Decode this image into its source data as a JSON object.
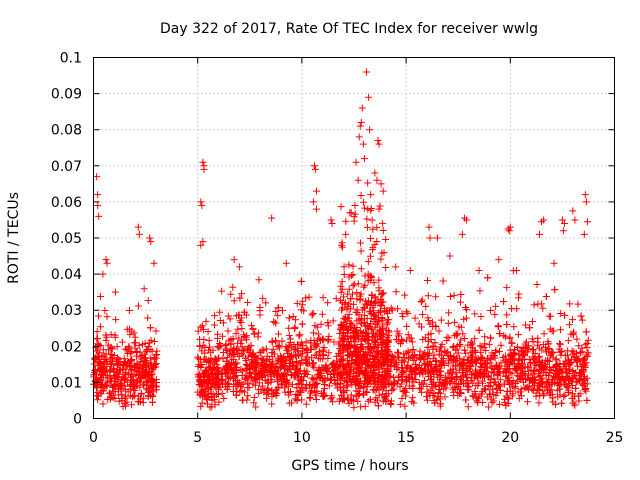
{
  "chart_data": {
    "type": "scatter",
    "title": "Day 322 of 2017, Rate Of TEC Index for receiver wwlg",
    "xlabel": "GPS time / hours",
    "ylabel": "ROTI / TECUs",
    "xlim": [
      0,
      25
    ],
    "ylim": [
      0,
      0.1
    ],
    "x_ticks": [
      "0",
      "5",
      "10",
      "15",
      "20",
      "25"
    ],
    "y_ticks": [
      "0",
      "0.01",
      "0.02",
      "0.03",
      "0.04",
      "0.05",
      "0.06",
      "0.07",
      "0.08",
      "0.09",
      "0.1"
    ],
    "grid": true,
    "marker": "+",
    "color": "#ff0000",
    "segments": [
      {
        "start": 0.0,
        "end": 3.05,
        "median": 0.012,
        "spread": 0.006,
        "count": 420
      },
      {
        "start": 5.0,
        "end": 6.0,
        "median": 0.011,
        "spread": 0.006,
        "count": 160
      },
      {
        "start": 6.0,
        "end": 23.75,
        "median": 0.013,
        "spread": 0.007,
        "count": 2400
      },
      {
        "start": 11.8,
        "end": 14.2,
        "median": 0.022,
        "spread": 0.012,
        "count": 420
      }
    ],
    "outliers": [
      {
        "x": 0.15,
        "y": 0.067
      },
      {
        "x": 0.2,
        "y": 0.062
      },
      {
        "x": 0.2,
        "y": 0.059
      },
      {
        "x": 0.25,
        "y": 0.056
      },
      {
        "x": 0.6,
        "y": 0.044
      },
      {
        "x": 0.65,
        "y": 0.043
      },
      {
        "x": 2.15,
        "y": 0.053
      },
      {
        "x": 2.2,
        "y": 0.051
      },
      {
        "x": 2.7,
        "y": 0.05
      },
      {
        "x": 2.75,
        "y": 0.049
      },
      {
        "x": 5.15,
        "y": 0.06
      },
      {
        "x": 5.2,
        "y": 0.059
      },
      {
        "x": 5.25,
        "y": 0.071
      },
      {
        "x": 5.3,
        "y": 0.07
      },
      {
        "x": 5.3,
        "y": 0.069
      },
      {
        "x": 5.25,
        "y": 0.049
      },
      {
        "x": 5.15,
        "y": 0.048
      },
      {
        "x": 8.55,
        "y": 0.0555
      },
      {
        "x": 10.6,
        "y": 0.07
      },
      {
        "x": 10.65,
        "y": 0.069
      },
      {
        "x": 10.7,
        "y": 0.063
      },
      {
        "x": 10.55,
        "y": 0.06
      },
      {
        "x": 10.7,
        "y": 0.058
      },
      {
        "x": 11.4,
        "y": 0.055
      },
      {
        "x": 11.45,
        "y": 0.054
      },
      {
        "x": 12.3,
        "y": 0.057
      },
      {
        "x": 12.6,
        "y": 0.071
      },
      {
        "x": 12.55,
        "y": 0.059
      },
      {
        "x": 12.75,
        "y": 0.078
      },
      {
        "x": 12.8,
        "y": 0.081
      },
      {
        "x": 12.85,
        "y": 0.082
      },
      {
        "x": 12.9,
        "y": 0.086
      },
      {
        "x": 12.95,
        "y": 0.076
      },
      {
        "x": 13.0,
        "y": 0.072
      },
      {
        "x": 13.1,
        "y": 0.096
      },
      {
        "x": 13.2,
        "y": 0.089
      },
      {
        "x": 13.25,
        "y": 0.08
      },
      {
        "x": 13.5,
        "y": 0.068
      },
      {
        "x": 13.6,
        "y": 0.066
      },
      {
        "x": 13.65,
        "y": 0.077
      },
      {
        "x": 13.7,
        "y": 0.076
      },
      {
        "x": 13.8,
        "y": 0.065
      },
      {
        "x": 13.9,
        "y": 0.063
      },
      {
        "x": 13.7,
        "y": 0.058
      },
      {
        "x": 13.3,
        "y": 0.062
      },
      {
        "x": 12.7,
        "y": 0.066
      },
      {
        "x": 16.1,
        "y": 0.053
      },
      {
        "x": 16.15,
        "y": 0.05
      },
      {
        "x": 16.5,
        "y": 0.05
      },
      {
        "x": 17.1,
        "y": 0.045
      },
      {
        "x": 17.8,
        "y": 0.0555
      },
      {
        "x": 17.9,
        "y": 0.055
      },
      {
        "x": 17.7,
        "y": 0.051
      },
      {
        "x": 19.9,
        "y": 0.0525
      },
      {
        "x": 19.95,
        "y": 0.052
      },
      {
        "x": 20.0,
        "y": 0.053
      },
      {
        "x": 21.5,
        "y": 0.0545
      },
      {
        "x": 21.6,
        "y": 0.055
      },
      {
        "x": 21.4,
        "y": 0.051
      },
      {
        "x": 22.5,
        "y": 0.055
      },
      {
        "x": 22.6,
        "y": 0.054
      },
      {
        "x": 22.55,
        "y": 0.052
      },
      {
        "x": 23.0,
        "y": 0.0575
      },
      {
        "x": 23.1,
        "y": 0.055
      },
      {
        "x": 23.6,
        "y": 0.062
      },
      {
        "x": 23.65,
        "y": 0.06
      },
      {
        "x": 23.7,
        "y": 0.0545
      },
      {
        "x": 23.55,
        "y": 0.051
      },
      {
        "x": 0.45,
        "y": 0.04
      },
      {
        "x": 1.05,
        "y": 0.035
      },
      {
        "x": 2.9,
        "y": 0.043
      },
      {
        "x": 6.75,
        "y": 0.044
      },
      {
        "x": 7.0,
        "y": 0.042
      },
      {
        "x": 9.25,
        "y": 0.043
      },
      {
        "x": 11.9,
        "y": 0.048
      },
      {
        "x": 12.1,
        "y": 0.051
      },
      {
        "x": 14.5,
        "y": 0.042
      },
      {
        "x": 15.2,
        "y": 0.041
      },
      {
        "x": 18.5,
        "y": 0.041
      },
      {
        "x": 19.45,
        "y": 0.044
      },
      {
        "x": 20.3,
        "y": 0.041
      },
      {
        "x": 22.1,
        "y": 0.043
      }
    ]
  }
}
